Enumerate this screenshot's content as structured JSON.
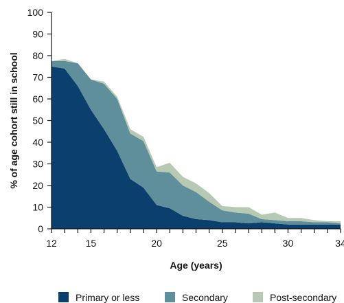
{
  "chart_data": {
    "type": "area",
    "stacked": true,
    "xlabel": "Age (years)",
    "ylabel": "% of age cohort still in school",
    "xlim": [
      12,
      34
    ],
    "ylim": [
      0,
      100
    ],
    "x_ticks": [
      12,
      15,
      20,
      25,
      30,
      34
    ],
    "y_ticks": [
      0,
      10,
      20,
      30,
      40,
      50,
      60,
      70,
      80,
      90,
      100
    ],
    "grid": false,
    "legend_position": "bottom",
    "x": [
      12,
      13,
      14,
      15,
      16,
      17,
      18,
      19,
      20,
      21,
      22,
      23,
      24,
      25,
      26,
      27,
      28,
      29,
      30,
      31,
      32,
      33,
      34
    ],
    "series": [
      {
        "name": "Primary or less",
        "color": "#0b3f6e",
        "values": [
          75,
          74,
          66,
          55,
          46,
          36,
          23,
          19,
          11,
          9.5,
          6,
          4.5,
          4,
          3,
          3,
          2.5,
          3,
          2.5,
          2,
          2,
          2,
          2,
          2
        ]
      },
      {
        "name": "Secondary",
        "color": "#5f8f9b",
        "values": [
          2.5,
          3.5,
          10.5,
          14,
          21,
          24,
          21,
          21.5,
          15.5,
          16.5,
          14,
          12.5,
          8.5,
          5.5,
          4.5,
          4.5,
          1.5,
          1.5,
          1.5,
          1.5,
          1,
          1,
          0.5
        ]
      },
      {
        "name": "Post-secondary",
        "color": "#b6c9b3",
        "values": [
          0,
          1,
          0,
          0,
          1,
          1,
          2,
          2,
          2,
          4.5,
          4,
          4,
          4,
          2,
          2.5,
          3,
          2,
          3.5,
          1.5,
          1.5,
          1,
          0.5,
          1
        ]
      }
    ]
  }
}
